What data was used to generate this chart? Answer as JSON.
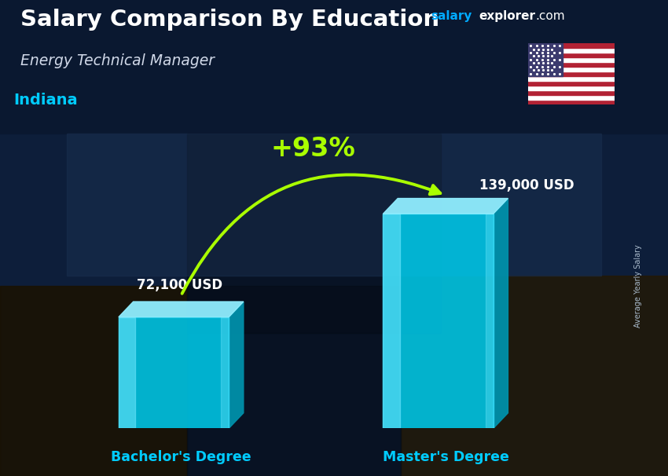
{
  "title": "Salary Comparison By Education",
  "subtitle1": "Energy Technical Manager",
  "subtitle2": "Indiana",
  "categories": [
    "Bachelor's Degree",
    "Master's Degree"
  ],
  "values": [
    72100,
    139000
  ],
  "value_labels": [
    "72,100 USD",
    "139,000 USD"
  ],
  "pct_change": "+93%",
  "bar_face_color": "#00c8e8",
  "bar_highlight_color": "#70e8ff",
  "bar_side_color": "#0090aa",
  "bar_top_color": "#90eeff",
  "bg_dark": "#0a1628",
  "bg_mid": "#0d2040",
  "title_color": "#ffffff",
  "subtitle1_color": "#d0d8e8",
  "subtitle2_color": "#00ccff",
  "category_color": "#00ccff",
  "value_label_color": "#ffffff",
  "pct_color": "#aaff00",
  "arrow_color": "#aaff00",
  "side_label": "Average Yearly Salary",
  "side_label_color": "#aabbcc",
  "salary_web_color": "#00aaff",
  "explorer_web_color": "#ffffff"
}
